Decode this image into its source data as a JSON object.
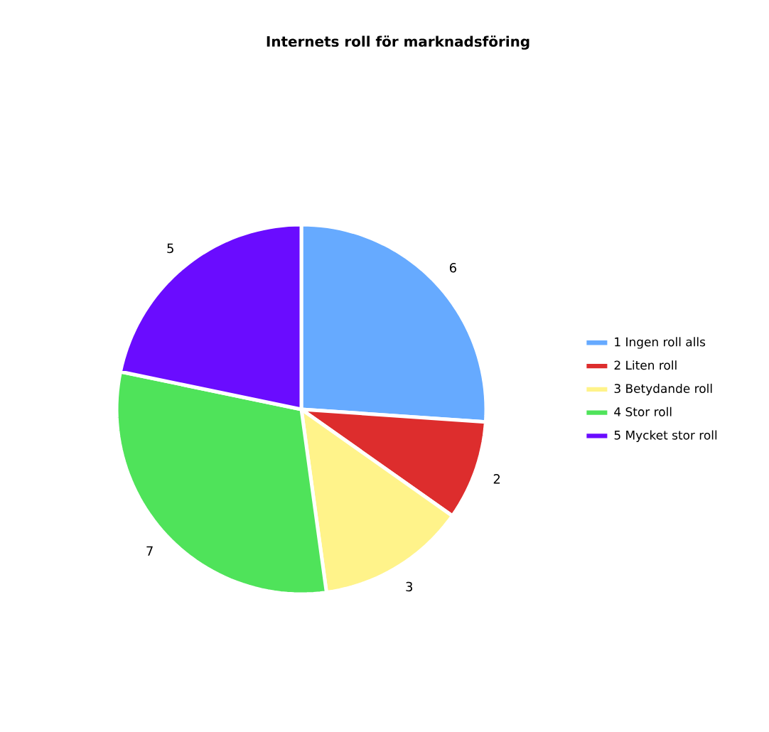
{
  "chart_data": {
    "type": "pie",
    "title": "Internets roll för marknadsföring",
    "categories": [
      "1 Ingen roll alls",
      "2 Liten roll",
      "3 Betydande roll",
      "4 Stor roll",
      "5 Mycket stor roll"
    ],
    "values": [
      6,
      2,
      3,
      7,
      5
    ],
    "colors": [
      "#66aaff",
      "#dd2d2d",
      "#fff38a",
      "#4fe35a",
      "#6a0cff"
    ],
    "data_labels": true,
    "legend": "right"
  }
}
